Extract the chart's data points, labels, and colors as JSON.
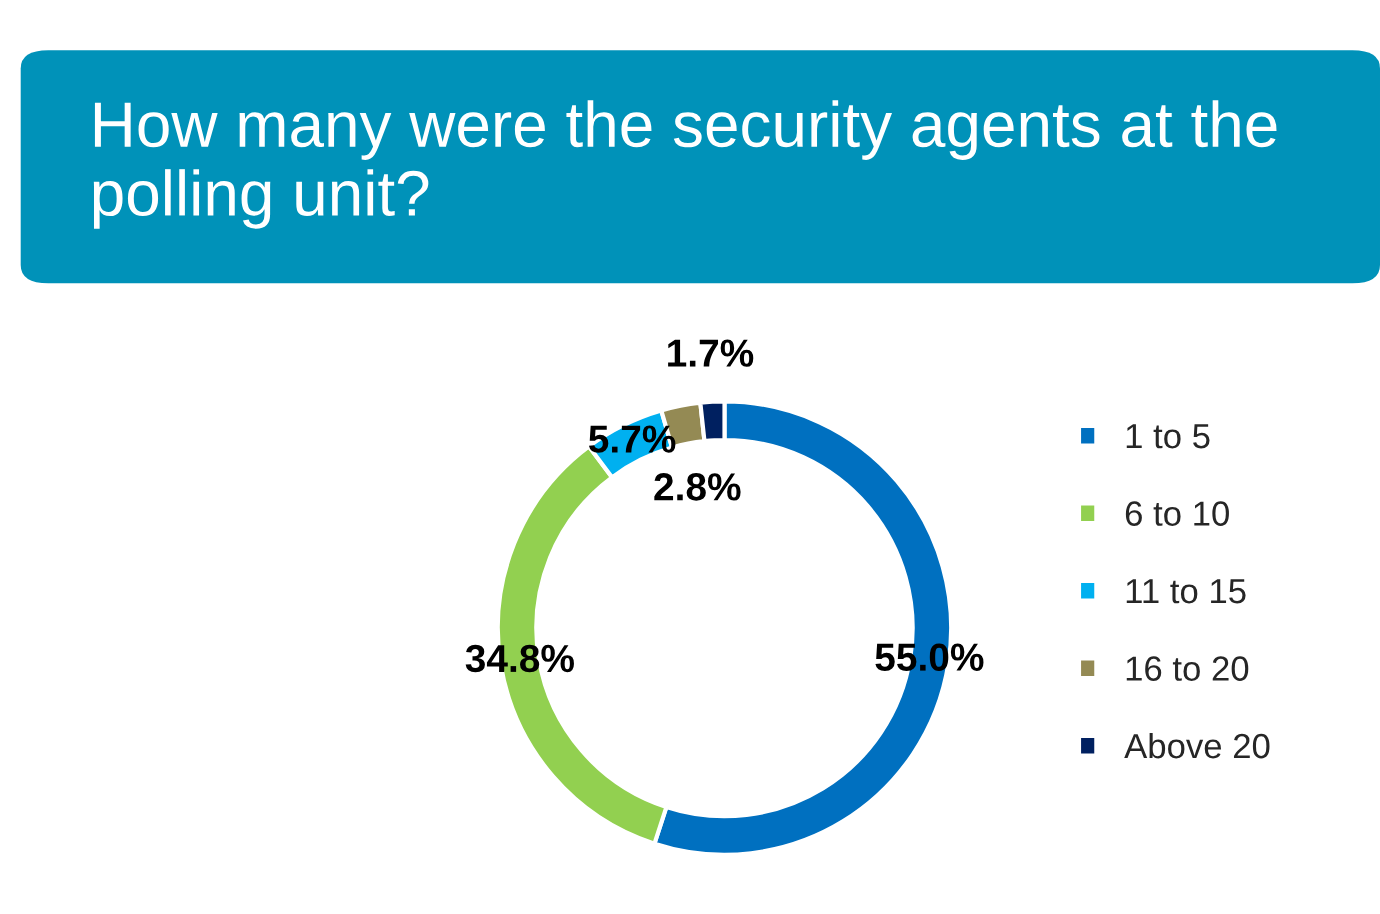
{
  "chart_data": {
    "type": "donut",
    "title": "How many were the security agents at the polling unit?",
    "categories": [
      "1 to 5",
      "6 to 10",
      "11 to 15",
      "16 to 20",
      "Above 20"
    ],
    "values": [
      55.0,
      34.8,
      5.7,
      2.8,
      1.7
    ],
    "value_labels": [
      "55.0%",
      "34.8%",
      "5.7%",
      "2.8%",
      "1.7%"
    ],
    "colors": [
      "#0070c0",
      "#92d050",
      "#00b0f0",
      "#948a54",
      "#002060"
    ],
    "legend": "right"
  }
}
